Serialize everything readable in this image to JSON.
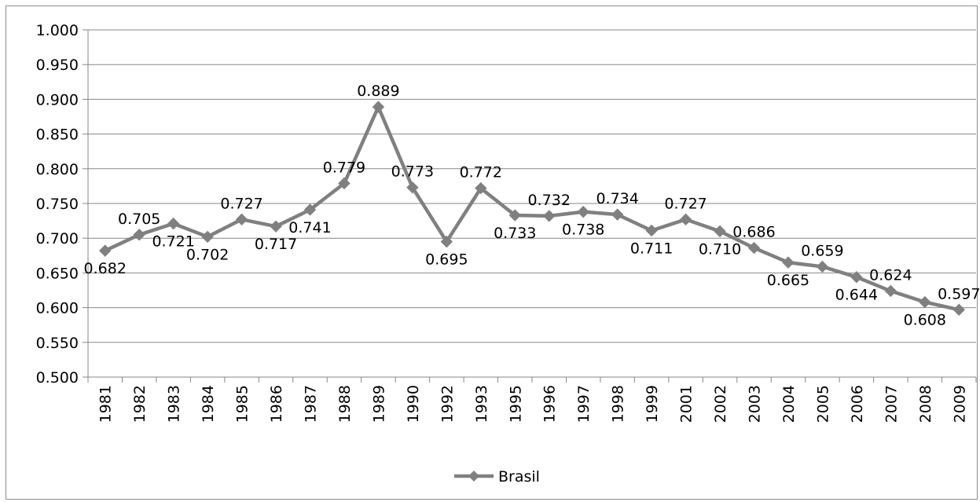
{
  "chart_data": {
    "type": "line",
    "title": "",
    "xlabel": "",
    "ylabel": "",
    "categories": [
      "1981",
      "1982",
      "1983",
      "1984",
      "1985",
      "1986",
      "1987",
      "1988",
      "1989",
      "1990",
      "1992",
      "1993",
      "1995",
      "1996",
      "1997",
      "1998",
      "1999",
      "2001",
      "2002",
      "2003",
      "2004",
      "2005",
      "2006",
      "2007",
      "2008",
      "2009"
    ],
    "series": [
      {
        "name": "Brasil",
        "color": "#808080",
        "marker": "diamond",
        "values": [
          0.682,
          0.705,
          0.721,
          0.702,
          0.727,
          0.717,
          0.741,
          0.779,
          0.889,
          0.773,
          0.695,
          0.772,
          0.733,
          0.732,
          0.738,
          0.734,
          0.711,
          0.727,
          0.71,
          0.686,
          0.665,
          0.659,
          0.644,
          0.624,
          0.608,
          0.597
        ],
        "data_labels": [
          "0.682",
          "0.705",
          "0.721",
          "0.702",
          "0.727",
          "0.717",
          "0.741",
          "0.779",
          "0.889",
          "0.773",
          "0.695",
          "0.772",
          "0.733",
          "0.732",
          "0.738",
          "0.734",
          "0.711",
          "0.727",
          "0.710",
          "0.686",
          "0.665",
          "0.659",
          "0.644",
          "0.624",
          "0.608",
          "0.597"
        ],
        "label_positions": [
          "below",
          "above",
          "below",
          "below",
          "above",
          "below",
          "below",
          "above",
          "above",
          "above",
          "below",
          "above",
          "below",
          "above",
          "below",
          "above",
          "below",
          "above",
          "below",
          "above",
          "below",
          "above",
          "below",
          "above",
          "below",
          "above"
        ]
      }
    ],
    "ylim": [
      0.5,
      1.0
    ],
    "y_ticks": [
      "0.500",
      "0.550",
      "0.600",
      "0.650",
      "0.700",
      "0.750",
      "0.800",
      "0.850",
      "0.900",
      "0.950",
      "1.000"
    ],
    "grid": "horizontal",
    "legend": "bottom-center",
    "gridline_color": "#878787",
    "axis_color": "#878787"
  }
}
